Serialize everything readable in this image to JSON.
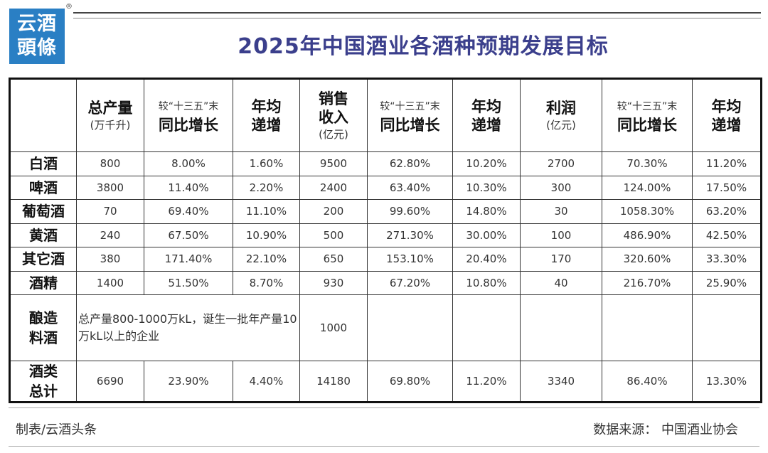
{
  "logo": {
    "line1": "云酒",
    "line2": "頭條",
    "mark": "®"
  },
  "title": "2025年中国酒业各酒种预期发展目标",
  "headers": {
    "output": {
      "main": "总产量",
      "unit": "(万千升)"
    },
    "output_growth": {
      "top": "较“十三五”末",
      "main": "同比增长"
    },
    "output_avg": {
      "l1": "年均",
      "l2": "递增"
    },
    "sales": {
      "l1": "销售",
      "l2": "收入",
      "unit": "(亿元)"
    },
    "sales_growth": {
      "top": "较“十三五”末",
      "main": "同比增长"
    },
    "sales_avg": {
      "l1": "年均",
      "l2": "递增"
    },
    "profit": {
      "main": "利润",
      "unit": "(亿元)"
    },
    "profit_growth": {
      "top": "较“十三五”末",
      "main": "同比增长"
    },
    "profit_avg": {
      "l1": "年均",
      "l2": "递增"
    }
  },
  "rows": [
    {
      "name": "白酒",
      "output": "800",
      "output_growth": "8.00%",
      "output_avg": "1.60%",
      "sales": "9500",
      "sales_growth": "62.80%",
      "sales_avg": "10.20%",
      "profit": "2700",
      "profit_growth": "70.30%",
      "profit_avg": "11.20%"
    },
    {
      "name": "啤酒",
      "output": "3800",
      "output_growth": "11.40%",
      "output_avg": "2.20%",
      "sales": "2400",
      "sales_growth": "63.40%",
      "sales_avg": "10.30%",
      "profit": "300",
      "profit_growth": "124.00%",
      "profit_avg": "17.50%"
    },
    {
      "name": "葡萄酒",
      "output": "70",
      "output_growth": "69.40%",
      "output_avg": "11.10%",
      "sales": "200",
      "sales_growth": "99.60%",
      "sales_avg": "14.80%",
      "profit": "30",
      "profit_growth": "1058.30%",
      "profit_avg": "63.20%"
    },
    {
      "name": "黄酒",
      "output": "240",
      "output_growth": "67.50%",
      "output_avg": "10.90%",
      "sales": "500",
      "sales_growth": "271.30%",
      "sales_avg": "30.00%",
      "profit": "100",
      "profit_growth": "486.90%",
      "profit_avg": "42.50%"
    },
    {
      "name": "其它酒",
      "output": "380",
      "output_growth": "171.40%",
      "output_avg": "22.10%",
      "sales": "650",
      "sales_growth": "153.10%",
      "sales_avg": "20.40%",
      "profit": "170",
      "profit_growth": "320.60%",
      "profit_avg": "33.30%"
    },
    {
      "name": "酒精",
      "output": "1400",
      "output_growth": "51.50%",
      "output_avg": "8.70%",
      "sales": "930",
      "sales_growth": "67.20%",
      "sales_avg": "10.80%",
      "profit": "40",
      "profit_growth": "216.70%",
      "profit_avg": "25.90%"
    }
  ],
  "brew": {
    "name_l1": "酿造",
    "name_l2": "料酒",
    "note": "总产量800-1000万kL，诞生一批年产量10万kL以上的企业",
    "sales": "1000"
  },
  "total": {
    "name_l1": "酒类",
    "name_l2": "总计",
    "output": "6690",
    "output_growth": "23.90%",
    "output_avg": "4.40%",
    "sales": "14180",
    "sales_growth": "69.80%",
    "sales_avg": "11.20%",
    "profit": "3340",
    "profit_growth": "86.40%",
    "profit_avg": "13.30%"
  },
  "footer": {
    "maker": "制表/云酒头条",
    "source": "数据来源：  中国酒业协会"
  }
}
